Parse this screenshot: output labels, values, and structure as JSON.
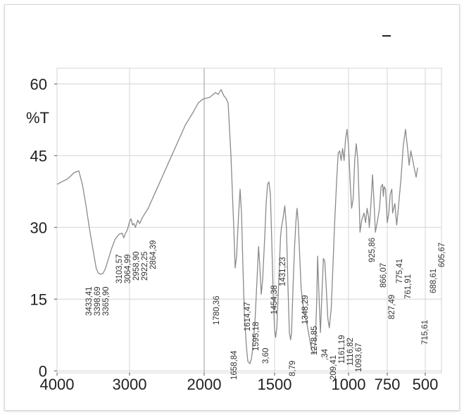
{
  "chart_data": {
    "type": "line",
    "title": "",
    "xlabel": "",
    "ylabel": "%T",
    "x_reversed": true,
    "xlim": [
      4000,
      400
    ],
    "ylim": [
      -1,
      62
    ],
    "x_ticks": [
      {
        "value": 4000,
        "label": "4000"
      },
      {
        "value": 3000,
        "label": "3000"
      },
      {
        "value": 2000,
        "label": "2000"
      },
      {
        "value": 1500,
        "label": "1500"
      },
      {
        "value": 1000,
        "label": "1000"
      },
      {
        "value": 750,
        "label": "750"
      },
      {
        "value": 500,
        "label": "500"
      }
    ],
    "y_ticks": [
      {
        "value": 60,
        "label": "60"
      },
      {
        "value": 45,
        "label": "45"
      },
      {
        "value": 30,
        "label": "30"
      },
      {
        "value": 15,
        "label": "15"
      },
      {
        "value": 0,
        "label": "0"
      }
    ],
    "grid": true,
    "series": [
      {
        "color": "#8a8a8a",
        "points": [
          [
            4000,
            39.0
          ],
          [
            3850,
            40.2
          ],
          [
            3760,
            41.5
          ],
          [
            3700,
            41.8
          ],
          [
            3650,
            39.0
          ],
          [
            3600,
            34.5
          ],
          [
            3550,
            29.5
          ],
          [
            3500,
            25.0
          ],
          [
            3460,
            21.5
          ],
          [
            3433,
            20.5
          ],
          [
            3400,
            20.2
          ],
          [
            3365,
            20.4
          ],
          [
            3330,
            21.5
          ],
          [
            3300,
            23.0
          ],
          [
            3250,
            25.5
          ],
          [
            3200,
            27.5
          ],
          [
            3150,
            28.5
          ],
          [
            3103,
            28.8
          ],
          [
            3080,
            27.8
          ],
          [
            3064,
            28.5
          ],
          [
            3030,
            29.5
          ],
          [
            3000,
            31.2
          ],
          [
            2980,
            31.8
          ],
          [
            2959,
            30.5
          ],
          [
            2940,
            30.8
          ],
          [
            2922,
            30.0
          ],
          [
            2890,
            31.5
          ],
          [
            2864,
            30.8
          ],
          [
            2830,
            32.0
          ],
          [
            2750,
            34.0
          ],
          [
            2650,
            37.5
          ],
          [
            2550,
            41.0
          ],
          [
            2450,
            44.5
          ],
          [
            2350,
            48.0
          ],
          [
            2250,
            51.5
          ],
          [
            2150,
            54.0
          ],
          [
            2080,
            56.0
          ],
          [
            2020,
            56.8
          ],
          [
            1960,
            57.2
          ],
          [
            1920,
            58.2
          ],
          [
            1900,
            57.8
          ],
          [
            1880,
            58.8
          ],
          [
            1860,
            57.5
          ],
          [
            1845,
            57.0
          ],
          [
            1830,
            56.0
          ],
          [
            1810,
            45.0
          ],
          [
            1790,
            30.0
          ],
          [
            1780,
            21.5
          ],
          [
            1770,
            24.0
          ],
          [
            1755,
            33.0
          ],
          [
            1745,
            38.0
          ],
          [
            1735,
            33.0
          ],
          [
            1725,
            22.0
          ],
          [
            1715,
            12.0
          ],
          [
            1700,
            5.0
          ],
          [
            1690,
            2.0
          ],
          [
            1675,
            1.5
          ],
          [
            1665,
            2.5
          ],
          [
            1658,
            4.0
          ],
          [
            1640,
            10.0
          ],
          [
            1625,
            19.0
          ],
          [
            1614,
            26.0
          ],
          [
            1605,
            22.0
          ],
          [
            1595,
            16.0
          ],
          [
            1585,
            19.0
          ],
          [
            1570,
            28.0
          ],
          [
            1560,
            35.0
          ],
          [
            1550,
            39.0
          ],
          [
            1540,
            39.5
          ],
          [
            1530,
            37.0
          ],
          [
            1520,
            27.0
          ],
          [
            1510,
            16.0
          ],
          [
            1500,
            8.5
          ],
          [
            1493,
            7.0
          ],
          [
            1485,
            9.0
          ],
          [
            1470,
            20.0
          ],
          [
            1460,
            28.0
          ],
          [
            1454,
            30.0
          ],
          [
            1445,
            31.5
          ],
          [
            1431,
            34.5
          ],
          [
            1420,
            30.0
          ],
          [
            1410,
            18.0
          ],
          [
            1400,
            8.0
          ],
          [
            1392,
            6.5
          ],
          [
            1385,
            8.0
          ],
          [
            1375,
            18.0
          ],
          [
            1365,
            26.0
          ],
          [
            1355,
            31.5
          ],
          [
            1348,
            34.0
          ],
          [
            1340,
            31.0
          ],
          [
            1330,
            24.0
          ],
          [
            1320,
            17.0
          ],
          [
            1300,
            12.0
          ],
          [
            1279,
            9.5
          ],
          [
            1265,
            7.0
          ],
          [
            1250,
            4.5
          ],
          [
            1234,
            3.5
          ],
          [
            1225,
            6.0
          ],
          [
            1215,
            15.0
          ],
          [
            1209,
            24.0
          ],
          [
            1200,
            16.0
          ],
          [
            1190,
            8.0
          ],
          [
            1180,
            16.0
          ],
          [
            1170,
            23.5
          ],
          [
            1161,
            23.0
          ],
          [
            1150,
            17.0
          ],
          [
            1140,
            11.0
          ],
          [
            1130,
            9.0
          ],
          [
            1117,
            13.0
          ],
          [
            1105,
            22.0
          ],
          [
            1094,
            31.0
          ],
          [
            1080,
            40.0
          ],
          [
            1070,
            45.5
          ],
          [
            1060,
            46.0
          ],
          [
            1050,
            44.0
          ],
          [
            1040,
            46.5
          ],
          [
            1030,
            44.0
          ],
          [
            1020,
            48.5
          ],
          [
            1010,
            50.5
          ],
          [
            1000,
            47.0
          ],
          [
            990,
            40.0
          ],
          [
            980,
            34.0
          ],
          [
            970,
            36.0
          ],
          [
            960,
            44.0
          ],
          [
            950,
            47.5
          ],
          [
            940,
            44.0
          ],
          [
            930,
            34.0
          ],
          [
            926,
            29.0
          ],
          [
            915,
            31.5
          ],
          [
            900,
            33.0
          ],
          [
            890,
            31.0
          ],
          [
            880,
            34.0
          ],
          [
            870,
            32.0
          ],
          [
            866,
            30.0
          ],
          [
            855,
            35.0
          ],
          [
            845,
            41.0
          ],
          [
            835,
            35.0
          ],
          [
            827,
            29.0
          ],
          [
            815,
            31.0
          ],
          [
            800,
            34.0
          ],
          [
            790,
            38.5
          ],
          [
            780,
            39.0
          ],
          [
            775,
            36.5
          ],
          [
            770,
            38.5
          ],
          [
            761,
            38.0
          ],
          [
            750,
            31.0
          ],
          [
            740,
            33.0
          ],
          [
            730,
            37.0
          ],
          [
            720,
            38.0
          ],
          [
            715,
            33.0
          ],
          [
            700,
            35.0
          ],
          [
            688,
            30.5
          ],
          [
            680,
            33.0
          ],
          [
            660,
            40.0
          ],
          [
            645,
            47.0
          ],
          [
            630,
            50.5
          ],
          [
            615,
            46.0
          ],
          [
            606,
            43.0
          ],
          [
            595,
            46.0
          ],
          [
            585,
            44.5
          ],
          [
            570,
            42.0
          ],
          [
            560,
            40.5
          ],
          [
            550,
            42.5
          ]
        ]
      }
    ],
    "annotations": [
      {
        "label": "3433,41",
        "x": 3433
      },
      {
        "label": "3398,69",
        "x": 3398
      },
      {
        "label": "3365,90",
        "x": 3365
      },
      {
        "label": "3103,57",
        "x": 3103
      },
      {
        "label": "3064,99",
        "x": 3064
      },
      {
        "label": "2958,90",
        "x": 2958
      },
      {
        "label": "2922,25",
        "x": 2922
      },
      {
        "label": "2864,39",
        "x": 2864
      },
      {
        "label": "1780,36",
        "x": 1780
      },
      {
        "label": "1658,84",
        "x": 1658
      },
      {
        "label": "1614,47",
        "x": 1614
      },
      {
        "label": "1595,18",
        "x": 1595
      },
      {
        "label": "3,60",
        "x": 1493
      },
      {
        "label": "1454,38",
        "x": 1454
      },
      {
        "label": "1431,23",
        "x": 1431
      },
      {
        "label": "8,79",
        "x": 1392
      },
      {
        "label": "1348,29",
        "x": 1348
      },
      {
        "label": "1278,85",
        "x": 1279
      },
      {
        "label": ",34",
        "x": 1234
      },
      {
        "label": "209,41",
        "x": 1209
      },
      {
        "label": "1161,19",
        "x": 1161
      },
      {
        "label": "1116,82",
        "x": 1117
      },
      {
        "label": "1093,67",
        "x": 1094
      },
      {
        "label": "925,86",
        "x": 926
      },
      {
        "label": "866,07",
        "x": 866
      },
      {
        "label": "827,49",
        "x": 827
      },
      {
        "label": "775,41",
        "x": 775
      },
      {
        "label": "761,91",
        "x": 761
      },
      {
        "label": "715,61",
        "x": 715
      },
      {
        "label": "688,61",
        "x": 688
      },
      {
        "label": "605,67",
        "x": 606
      }
    ]
  }
}
